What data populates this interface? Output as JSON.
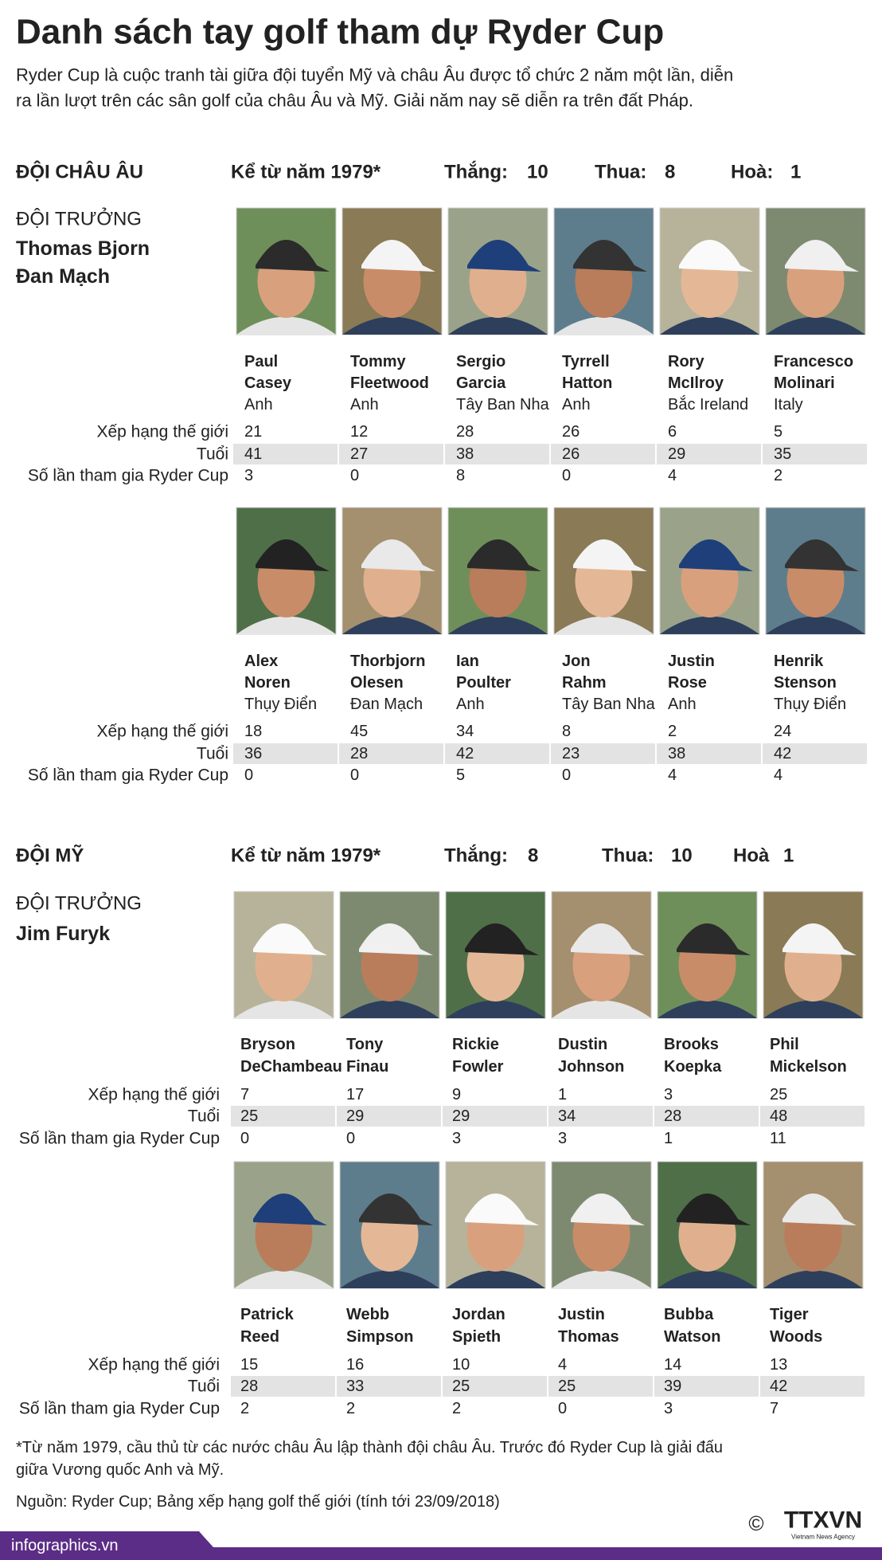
{
  "title": "Danh sách tay golf tham dự Ryder Cup",
  "intro": [
    "Ryder Cup là cuộc tranh tài giữa đội tuyển Mỹ và châu Âu được tổ chức 2 năm một lần, diễn",
    "ra lần lượt trên các sân golf của châu Âu và Mỹ. Giải năm nay sẽ diễn ra trên đất Pháp."
  ],
  "teams": [
    {
      "title": "ĐỘI CHÂU ÂU",
      "since": "Kể từ năm 1979*",
      "stats": [
        {
          "label": "Thắng:",
          "value": 10
        },
        {
          "label": "Thua:",
          "value": 8
        },
        {
          "label": "Hoà:",
          "value": 1
        }
      ],
      "captain_label": "ĐỘI TRƯỞNG",
      "captain_name": "Thomas Bjorn",
      "captain_country": "Đan Mạch",
      "row_labels": [
        "Xếp hạng thế giới",
        "Tuổi",
        "Số lần tham gia Ryder Cup"
      ],
      "players": [
        {
          "name_lines": [
            "Paul",
            "Casey"
          ],
          "country": "Anh",
          "rank": 21,
          "age": 41,
          "ryder_cups": 3
        },
        {
          "name_lines": [
            "Tommy",
            "Fleetwood"
          ],
          "country": "Anh",
          "rank": 12,
          "age": 27,
          "ryder_cups": 0
        },
        {
          "name_lines": [
            "Sergio",
            "Garcia"
          ],
          "country": "Tây Ban Nha",
          "rank": 28,
          "age": 38,
          "ryder_cups": 8
        },
        {
          "name_lines": [
            "Tyrrell",
            "Hatton"
          ],
          "country": "Anh",
          "rank": 26,
          "age": 26,
          "ryder_cups": 0
        },
        {
          "name_lines": [
            "Rory",
            "McIlroy"
          ],
          "country": "Bắc Ireland",
          "rank": 6,
          "age": 29,
          "ryder_cups": 4
        },
        {
          "name_lines": [
            "Francesco",
            "Molinari"
          ],
          "country": "Italy",
          "rank": 5,
          "age": 35,
          "ryder_cups": 2
        },
        {
          "name_lines": [
            "Alex",
            "Noren"
          ],
          "country": "Thụy Điển",
          "rank": 18,
          "age": 36,
          "ryder_cups": 0
        },
        {
          "name_lines": [
            "Thorbjorn",
            "Olesen"
          ],
          "country": "Đan Mạch",
          "rank": 45,
          "age": 28,
          "ryder_cups": 0
        },
        {
          "name_lines": [
            "Ian",
            "Poulter"
          ],
          "country": "Anh",
          "rank": 34,
          "age": 42,
          "ryder_cups": 5
        },
        {
          "name_lines": [
            "Jon",
            "Rahm"
          ],
          "country": "Tây Ban Nha",
          "rank": 8,
          "age": 23,
          "ryder_cups": 0
        },
        {
          "name_lines": [
            "Justin",
            "Rose"
          ],
          "country": "Anh",
          "rank": 2,
          "age": 38,
          "ryder_cups": 4
        },
        {
          "name_lines": [
            "Henrik",
            "Stenson"
          ],
          "country": "Thụy Điển",
          "rank": 24,
          "age": 42,
          "ryder_cups": 4
        }
      ]
    },
    {
      "title": "ĐỘI MỸ",
      "since": "Kể từ năm 1979*",
      "stats": [
        {
          "label": "Thắng:",
          "value": 8
        },
        {
          "label": "Thua:",
          "value": 10
        },
        {
          "label": "Hoà",
          "value": 1
        }
      ],
      "captain_label": "ĐỘI TRƯỞNG",
      "captain_name": "Jim Furyk",
      "row_labels": [
        "Xếp hạng thế giới",
        "Tuổi",
        "Số lần tham gia Ryder Cup"
      ],
      "players": [
        {
          "name_lines": [
            "Bryson",
            "DeChambeau"
          ],
          "rank": 7,
          "age": 25,
          "ryder_cups": 0
        },
        {
          "name_lines": [
            "Tony",
            "Finau"
          ],
          "rank": 17,
          "age": 29,
          "ryder_cups": 0
        },
        {
          "name_lines": [
            "Rickie",
            "Fowler"
          ],
          "rank": 9,
          "age": 29,
          "ryder_cups": 3
        },
        {
          "name_lines": [
            "Dustin",
            "Johnson"
          ],
          "rank": 1,
          "age": 34,
          "ryder_cups": 3
        },
        {
          "name_lines": [
            "Brooks",
            "Koepka"
          ],
          "rank": 3,
          "age": 28,
          "ryder_cups": 1
        },
        {
          "name_lines": [
            "Phil",
            "Mickelson"
          ],
          "rank": 25,
          "age": 48,
          "ryder_cups": 11
        },
        {
          "name_lines": [
            "Patrick",
            "Reed"
          ],
          "rank": 15,
          "age": 28,
          "ryder_cups": 2
        },
        {
          "name_lines": [
            "Webb",
            "Simpson"
          ],
          "rank": 16,
          "age": 33,
          "ryder_cups": 2
        },
        {
          "name_lines": [
            "Jordan",
            "Spieth"
          ],
          "rank": 10,
          "age": 25,
          "ryder_cups": 2
        },
        {
          "name_lines": [
            "Justin",
            "Thomas"
          ],
          "rank": 4,
          "age": 25,
          "ryder_cups": 0
        },
        {
          "name_lines": [
            "Bubba",
            "Watson"
          ],
          "rank": 14,
          "age": 39,
          "ryder_cups": 3
        },
        {
          "name_lines": [
            "Tiger",
            "Woods"
          ],
          "rank": 13,
          "age": 42,
          "ryder_cups": 7
        }
      ]
    }
  ],
  "footnote": [
    "*Từ năm 1979, cầu thủ từ các nước châu Âu lập thành đội châu Âu. Trước đó Ryder Cup là giải đấu",
    "giữa Vương quốc Anh và Mỹ."
  ],
  "source": "Nguồn: Ryder Cup; Bảng xếp hạng golf thế giới (tính tới 23/09/2018)",
  "site": "infographics.vn",
  "logo": {
    "symbol": "©",
    "name": "TTXVN",
    "tagline": "Vietnam News Agency"
  }
}
